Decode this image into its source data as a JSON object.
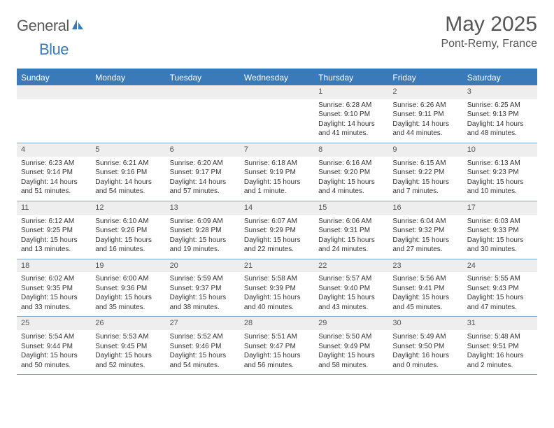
{
  "logo": {
    "general": "General",
    "blue": "Blue",
    "icon_color": "#3a7ab8"
  },
  "title": "May 2025",
  "location": "Pont-Remy, France",
  "colors": {
    "header_bg": "#3a7ab8",
    "header_text": "#ffffff",
    "daynum_bg": "#eeeeee",
    "text": "#333333",
    "border": "#8aa6bd"
  },
  "daysOfWeek": [
    "Sunday",
    "Monday",
    "Tuesday",
    "Wednesday",
    "Thursday",
    "Friday",
    "Saturday"
  ],
  "weeks": [
    [
      null,
      null,
      null,
      null,
      {
        "n": "1",
        "sr": "6:28 AM",
        "ss": "9:10 PM",
        "dl": "14 hours and 41 minutes."
      },
      {
        "n": "2",
        "sr": "6:26 AM",
        "ss": "9:11 PM",
        "dl": "14 hours and 44 minutes."
      },
      {
        "n": "3",
        "sr": "6:25 AM",
        "ss": "9:13 PM",
        "dl": "14 hours and 48 minutes."
      }
    ],
    [
      {
        "n": "4",
        "sr": "6:23 AM",
        "ss": "9:14 PM",
        "dl": "14 hours and 51 minutes."
      },
      {
        "n": "5",
        "sr": "6:21 AM",
        "ss": "9:16 PM",
        "dl": "14 hours and 54 minutes."
      },
      {
        "n": "6",
        "sr": "6:20 AM",
        "ss": "9:17 PM",
        "dl": "14 hours and 57 minutes."
      },
      {
        "n": "7",
        "sr": "6:18 AM",
        "ss": "9:19 PM",
        "dl": "15 hours and 1 minute."
      },
      {
        "n": "8",
        "sr": "6:16 AM",
        "ss": "9:20 PM",
        "dl": "15 hours and 4 minutes."
      },
      {
        "n": "9",
        "sr": "6:15 AM",
        "ss": "9:22 PM",
        "dl": "15 hours and 7 minutes."
      },
      {
        "n": "10",
        "sr": "6:13 AM",
        "ss": "9:23 PM",
        "dl": "15 hours and 10 minutes."
      }
    ],
    [
      {
        "n": "11",
        "sr": "6:12 AM",
        "ss": "9:25 PM",
        "dl": "15 hours and 13 minutes."
      },
      {
        "n": "12",
        "sr": "6:10 AM",
        "ss": "9:26 PM",
        "dl": "15 hours and 16 minutes."
      },
      {
        "n": "13",
        "sr": "6:09 AM",
        "ss": "9:28 PM",
        "dl": "15 hours and 19 minutes."
      },
      {
        "n": "14",
        "sr": "6:07 AM",
        "ss": "9:29 PM",
        "dl": "15 hours and 22 minutes."
      },
      {
        "n": "15",
        "sr": "6:06 AM",
        "ss": "9:31 PM",
        "dl": "15 hours and 24 minutes."
      },
      {
        "n": "16",
        "sr": "6:04 AM",
        "ss": "9:32 PM",
        "dl": "15 hours and 27 minutes."
      },
      {
        "n": "17",
        "sr": "6:03 AM",
        "ss": "9:33 PM",
        "dl": "15 hours and 30 minutes."
      }
    ],
    [
      {
        "n": "18",
        "sr": "6:02 AM",
        "ss": "9:35 PM",
        "dl": "15 hours and 33 minutes."
      },
      {
        "n": "19",
        "sr": "6:00 AM",
        "ss": "9:36 PM",
        "dl": "15 hours and 35 minutes."
      },
      {
        "n": "20",
        "sr": "5:59 AM",
        "ss": "9:37 PM",
        "dl": "15 hours and 38 minutes."
      },
      {
        "n": "21",
        "sr": "5:58 AM",
        "ss": "9:39 PM",
        "dl": "15 hours and 40 minutes."
      },
      {
        "n": "22",
        "sr": "5:57 AM",
        "ss": "9:40 PM",
        "dl": "15 hours and 43 minutes."
      },
      {
        "n": "23",
        "sr": "5:56 AM",
        "ss": "9:41 PM",
        "dl": "15 hours and 45 minutes."
      },
      {
        "n": "24",
        "sr": "5:55 AM",
        "ss": "9:43 PM",
        "dl": "15 hours and 47 minutes."
      }
    ],
    [
      {
        "n": "25",
        "sr": "5:54 AM",
        "ss": "9:44 PM",
        "dl": "15 hours and 50 minutes."
      },
      {
        "n": "26",
        "sr": "5:53 AM",
        "ss": "9:45 PM",
        "dl": "15 hours and 52 minutes."
      },
      {
        "n": "27",
        "sr": "5:52 AM",
        "ss": "9:46 PM",
        "dl": "15 hours and 54 minutes."
      },
      {
        "n": "28",
        "sr": "5:51 AM",
        "ss": "9:47 PM",
        "dl": "15 hours and 56 minutes."
      },
      {
        "n": "29",
        "sr": "5:50 AM",
        "ss": "9:49 PM",
        "dl": "15 hours and 58 minutes."
      },
      {
        "n": "30",
        "sr": "5:49 AM",
        "ss": "9:50 PM",
        "dl": "16 hours and 0 minutes."
      },
      {
        "n": "31",
        "sr": "5:48 AM",
        "ss": "9:51 PM",
        "dl": "16 hours and 2 minutes."
      }
    ]
  ],
  "labels": {
    "sunrise": "Sunrise:",
    "sunset": "Sunset:",
    "daylight": "Daylight:"
  }
}
